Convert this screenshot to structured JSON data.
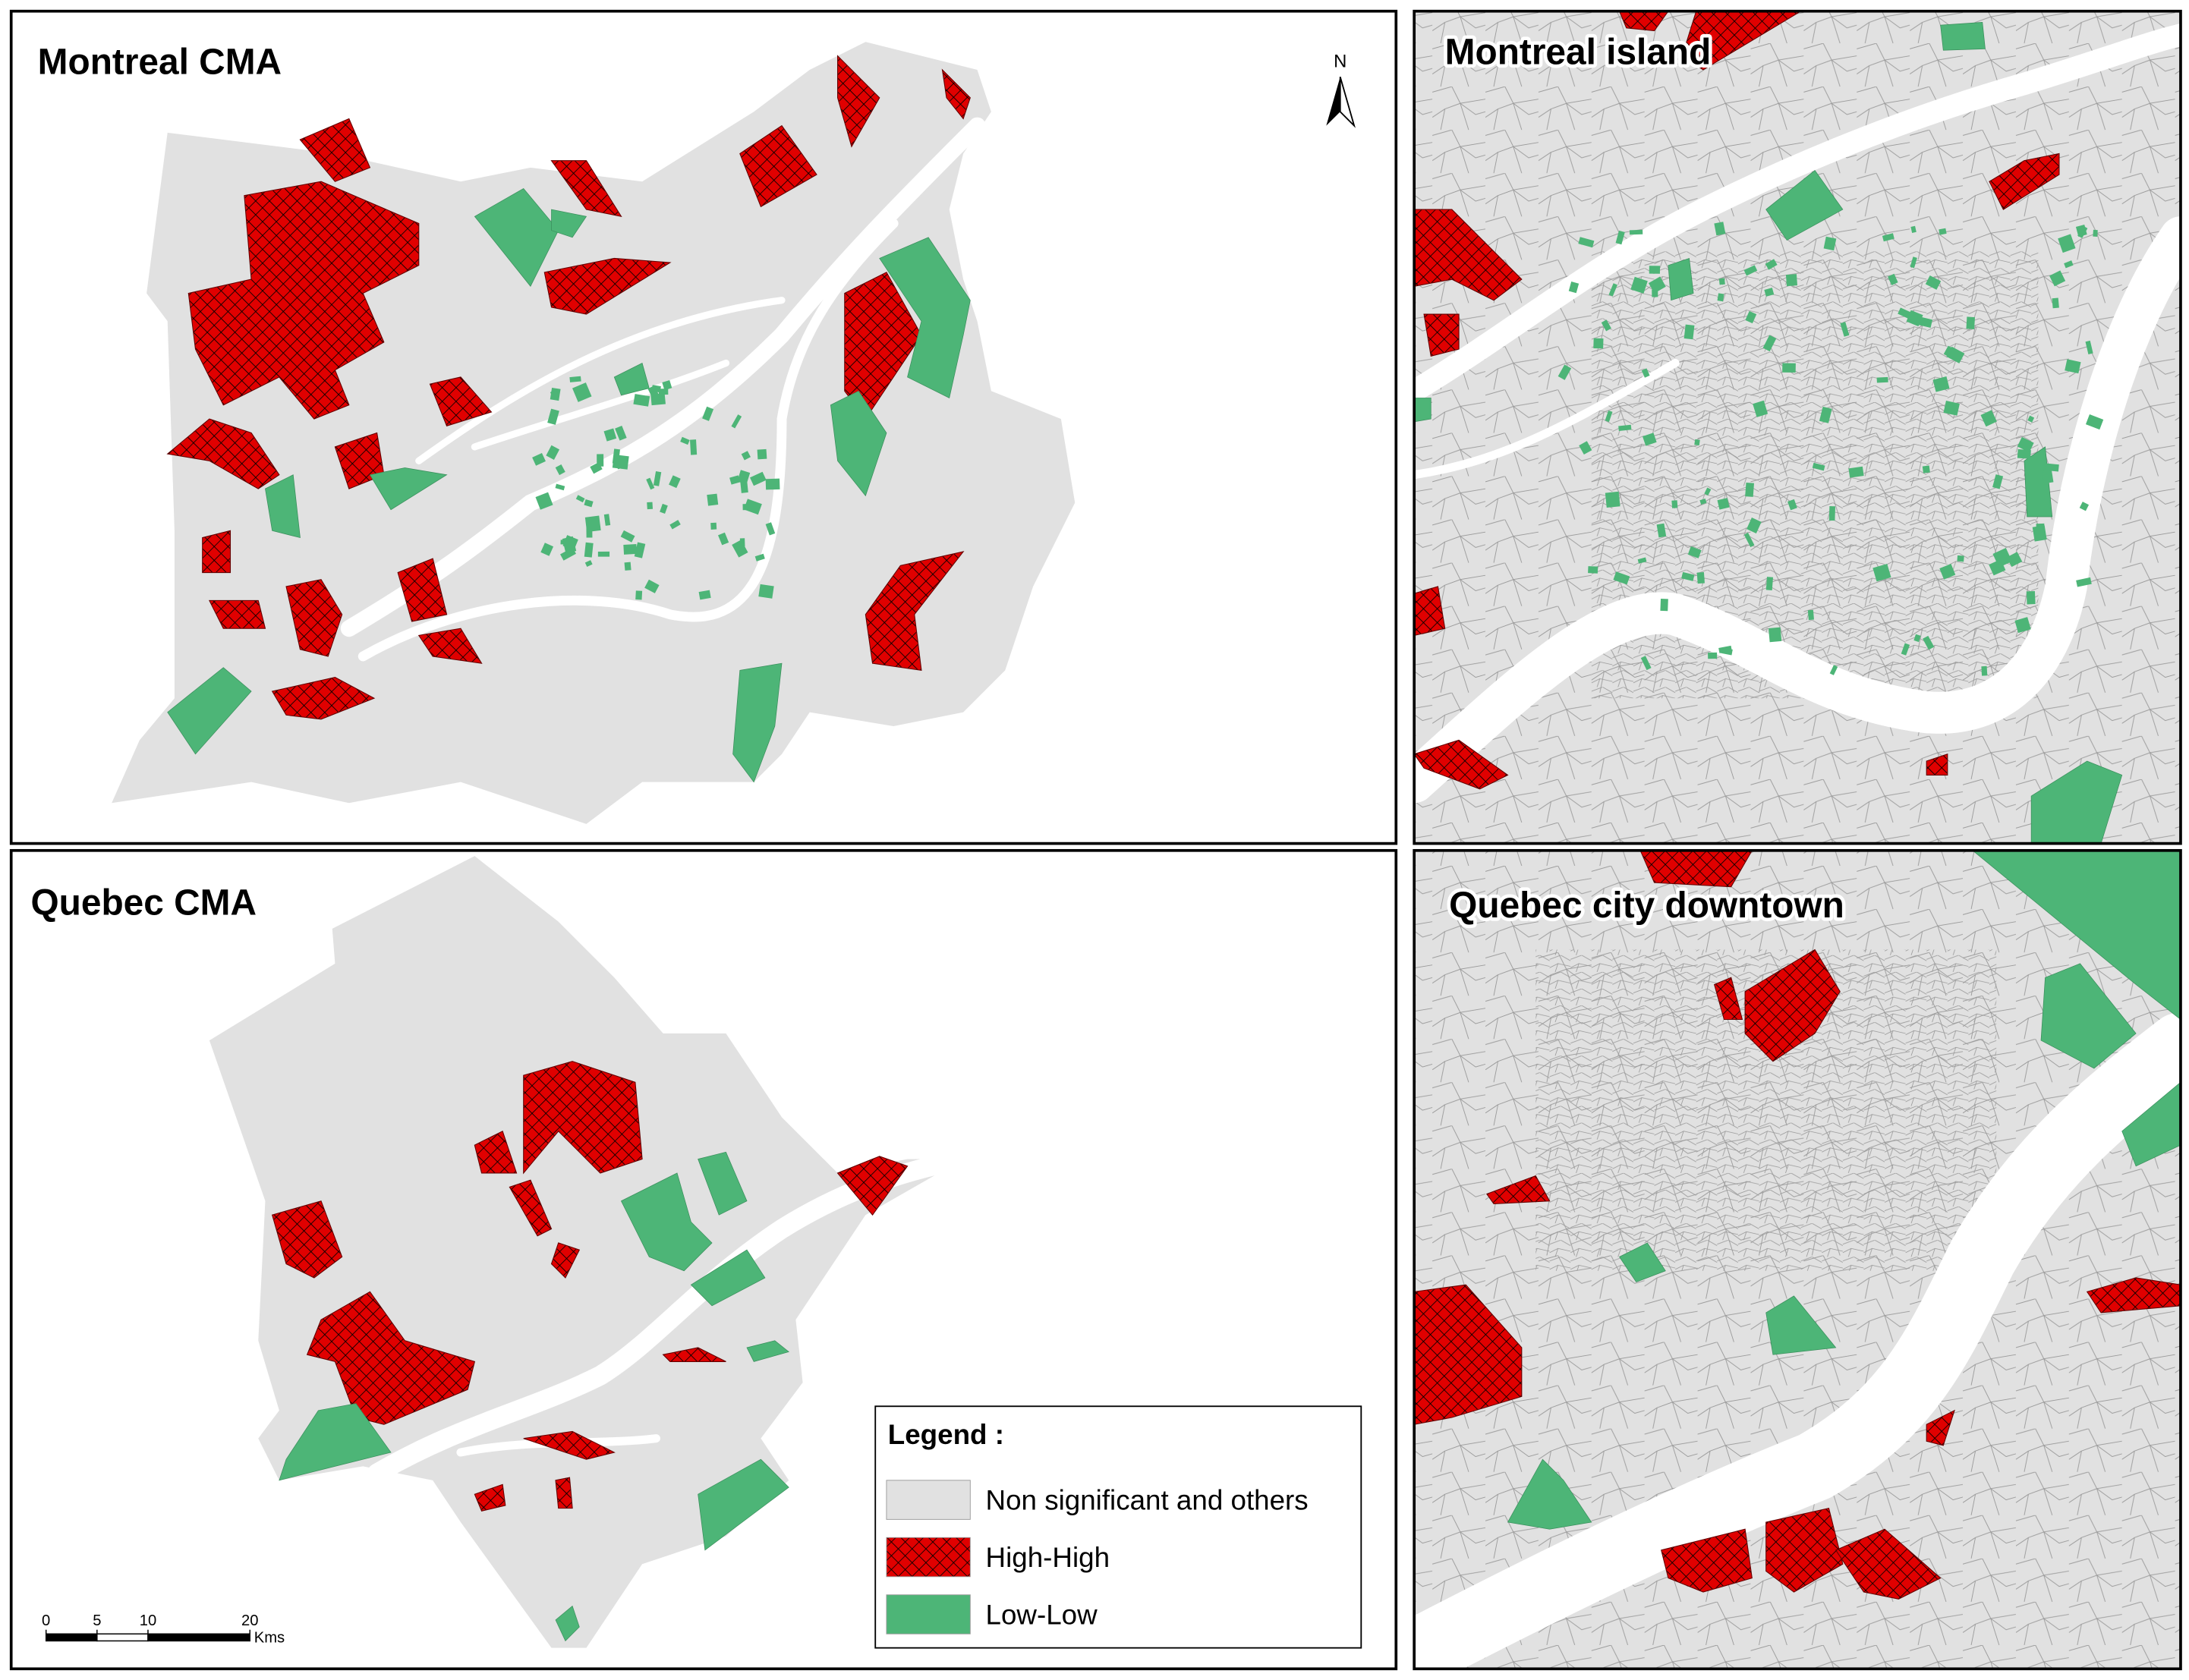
{
  "panels": [
    {
      "title": "Montreal CMA"
    },
    {
      "title": "Montreal island"
    },
    {
      "title": "Quebec CMA"
    },
    {
      "title": "Quebec city downtown"
    }
  ],
  "north_arrow": "N",
  "legend": {
    "title": "Legend :",
    "items": [
      {
        "label": "Non significant and others",
        "color": "#e1e1e1"
      },
      {
        "label": "High-High",
        "color": "#e00000"
      },
      {
        "label": "Low-Low",
        "color": "#4db577"
      }
    ]
  },
  "scale_bar": {
    "ticks": [
      0,
      5,
      10,
      20
    ],
    "unit": "Kms"
  }
}
